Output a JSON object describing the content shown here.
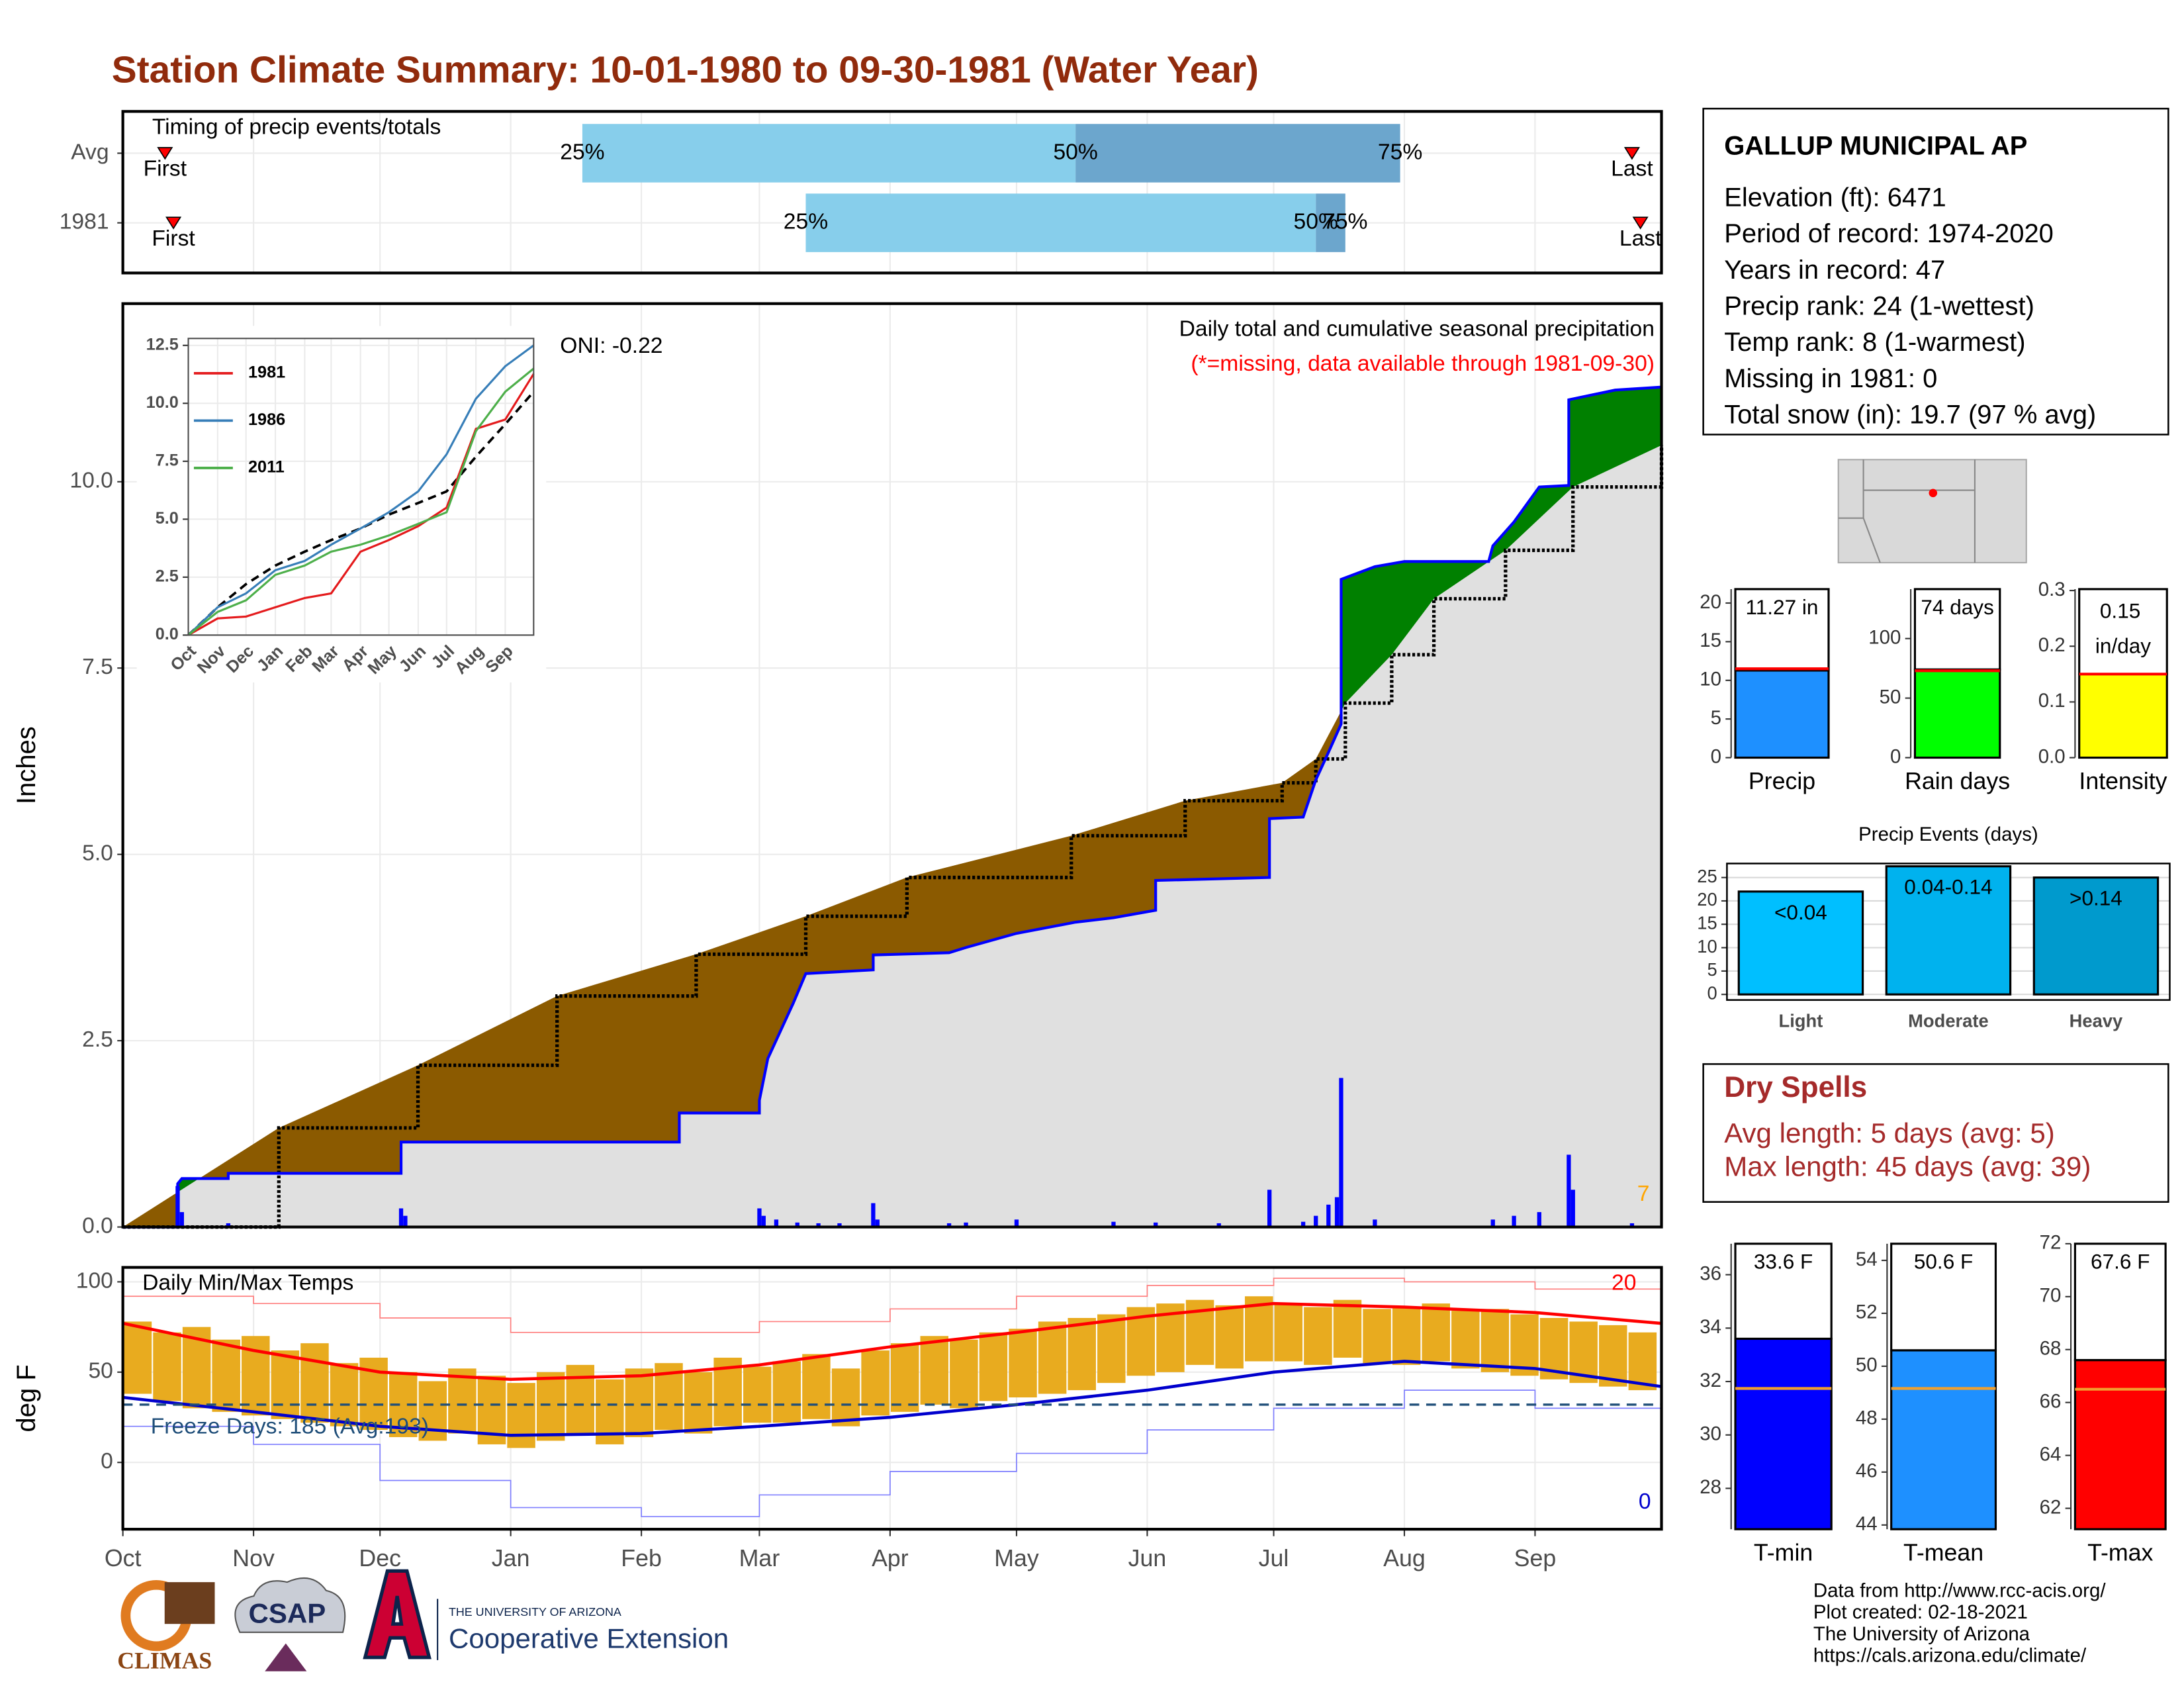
{
  "title": "Station Climate Summary: 10-01-1980 to 09-30-1981 (Water Year)",
  "station": {
    "name": "GALLUP MUNICIPAL AP",
    "lines": [
      "Elevation (ft): 6471",
      "Period of record: 1974-2020",
      "Years in record: 47",
      "Precip rank: 24 (1-wettest)",
      "Temp rank: 8 (1-warmest)",
      "Missing in 1981: 0",
      "Total snow (in): 19.7 (97 % avg)"
    ]
  },
  "dry_spells": {
    "title": "Dry Spells",
    "lines": [
      "Avg length: 5 days (avg: 5)",
      "Max length: 45 days (avg: 39)"
    ]
  },
  "footer": [
    "Data from http://www.rcc-acis.org/",
    "Plot created: 02-18-2021",
    "The University of Arizona",
    "https://cals.arizona.edu/climate/"
  ],
  "logos": {
    "climas": "CLIMAS",
    "csap": "CSAP",
    "university": "THE UNIVERSITY OF ARIZONA",
    "extension": "Cooperative Extension"
  },
  "chart_data": [
    {
      "type": "timing",
      "title": "Timing of precip events/totals",
      "categories": [
        "Avg",
        "1981"
      ],
      "xlim": [
        0,
        365
      ],
      "series": [
        {
          "name": "First",
          "values": [
            10,
            12
          ]
        },
        {
          "name": "25%",
          "values": [
            109,
            162
          ]
        },
        {
          "name": "50%",
          "values": [
            226,
            283
          ]
        },
        {
          "name": "75%",
          "values": [
            303,
            290
          ]
        },
        {
          "name": "Last",
          "values": [
            358,
            360
          ]
        }
      ],
      "colors": [
        "#87ceeb",
        "#6ca6cd"
      ],
      "marker_color": "#ff0000"
    },
    {
      "type": "precip",
      "title": "Daily total and cumulative seasonal precipitation",
      "subtitle": "(*=missing, data available through 1981-09-30)",
      "subtitle_color": "#ff0000",
      "annotations": [
        {
          "text": "ONI: -0.22",
          "color": "#000000"
        },
        {
          "text": "7",
          "color": "#ffa500"
        }
      ],
      "y_label": "Inches",
      "xlim": [
        0,
        365
      ],
      "ylim": [
        0,
        12.39
      ],
      "yticks": [
        {
          "value": 0,
          "label": "0.0"
        },
        2.5,
        {
          "value": 5,
          "label": "5.0"
        },
        7.5,
        {
          "value": 10,
          "label": "10.0"
        }
      ],
      "grid": true,
      "cumulative": {
        "color": "#0000ff",
        "x": [
          0,
          13,
          13,
          14,
          25,
          25,
          66,
          66,
          132,
          132,
          151,
          151,
          153,
          156,
          159,
          162,
          178,
          178,
          196,
          200,
          212,
          226,
          235,
          245,
          245,
          272,
          272,
          280,
          283,
          286,
          289,
          289,
          297,
          304,
          324,
          325,
          330,
          336,
          343,
          343,
          354,
          365
        ],
        "values": [
          0,
          0,
          0.58,
          0.65,
          0.65,
          0.72,
          0.72,
          1.14,
          1.14,
          1.53,
          1.53,
          1.7,
          2.26,
          2.63,
          3.0,
          3.4,
          3.45,
          3.65,
          3.68,
          3.75,
          3.94,
          4.09,
          4.15,
          4.25,
          4.65,
          4.69,
          5.48,
          5.5,
          6.0,
          6.37,
          6.75,
          8.69,
          8.86,
          8.93,
          8.93,
          9.14,
          9.46,
          9.93,
          9.95,
          11.1,
          11.23,
          11.27
        ]
      },
      "average": {
        "color": "#000000",
        "x": [
          0,
          37,
          70,
          103,
          136,
          162,
          186,
          225,
          252,
          275,
          283,
          290,
          301,
          311,
          328,
          344,
          365
        ],
        "values": [
          0,
          1.33,
          2.17,
          3.1,
          3.66,
          4.17,
          4.69,
          5.25,
          5.72,
          5.96,
          6.28,
          7.03,
          7.68,
          8.43,
          9.08,
          9.93,
          10.49
        ]
      },
      "daily": {
        "color": "#0000ff",
        "x": [
          13,
          14,
          25,
          66,
          67,
          151,
          152,
          155,
          160,
          165,
          170,
          178,
          179,
          196,
          200,
          212,
          235,
          245,
          260,
          272,
          280,
          283,
          286,
          288,
          289,
          297,
          325,
          330,
          336,
          343,
          344,
          358
        ],
        "values": [
          0.55,
          0.2,
          0.05,
          0.25,
          0.15,
          0.25,
          0.15,
          0.1,
          0.06,
          0.05,
          0.05,
          0.32,
          0.1,
          0.05,
          0.06,
          0.1,
          0.07,
          0.06,
          0.05,
          0.5,
          0.07,
          0.15,
          0.3,
          0.4,
          2.0,
          0.1,
          0.1,
          0.15,
          0.2,
          0.97,
          0.5,
          0.05
        ]
      },
      "above_color": "#008000",
      "below_color": "#8b5a00",
      "base_color": "#e0e0e0"
    },
    {
      "type": "inset",
      "xlim": [
        0,
        365
      ],
      "ylim": [
        0,
        12.8
      ],
      "xticks": [
        {
          "value": 0,
          "label": "Oct"
        },
        {
          "value": 31,
          "label": "Nov"
        },
        {
          "value": 61,
          "label": "Dec"
        },
        {
          "value": 92,
          "label": "Jan"
        },
        {
          "value": 123,
          "label": "Feb"
        },
        {
          "value": 151,
          "label": "Mar"
        },
        {
          "value": 182,
          "label": "Apr"
        },
        {
          "value": 212,
          "label": "May"
        },
        {
          "value": 243,
          "label": "Jun"
        },
        {
          "value": 273,
          "label": "Jul"
        },
        {
          "value": 304,
          "label": "Aug"
        },
        {
          "value": 335,
          "label": "Sep"
        }
      ],
      "yticks": [
        {
          "value": 0,
          "label": "0.0"
        },
        2.5,
        {
          "value": 5,
          "label": "5.0"
        },
        7.5,
        {
          "value": 10,
          "label": "10.0"
        },
        12.5
      ],
      "x": [
        0,
        31,
        61,
        92,
        123,
        151,
        182,
        212,
        243,
        273,
        304,
        335,
        365
      ],
      "series": [
        {
          "name": "1981",
          "color": "#e41a1c",
          "values": [
            0,
            0.72,
            0.8,
            1.2,
            1.6,
            1.8,
            3.6,
            4.1,
            4.7,
            5.5,
            8.9,
            9.3,
            11.27
          ]
        },
        {
          "name": "1986",
          "color": "#377eb8",
          "values": [
            0,
            1.2,
            1.8,
            2.8,
            3.2,
            3.9,
            4.6,
            5.3,
            6.2,
            7.8,
            10.2,
            11.6,
            12.5
          ]
        },
        {
          "name": "2011",
          "color": "#4daf4a",
          "values": [
            0,
            1.0,
            1.5,
            2.6,
            3.0,
            3.6,
            3.9,
            4.3,
            4.8,
            5.3,
            8.8,
            10.5,
            11.5
          ]
        }
      ],
      "reference": {
        "color": "#000000",
        "values": [
          0,
          1.2,
          2.2,
          3.0,
          3.6,
          4.1,
          4.6,
          5.2,
          5.7,
          6.2,
          7.7,
          9.1,
          10.5
        ]
      }
    },
    {
      "type": "temps",
      "title": "Daily Min/Max Temps",
      "y_label": "deg F",
      "xlim": [
        0,
        365
      ],
      "ylim": [
        -37,
        108
      ],
      "yticks": [
        0,
        50,
        100
      ],
      "grid": true,
      "xticks": [
        {
          "value": 0,
          "label": "Oct"
        },
        {
          "value": 31,
          "label": "Nov"
        },
        {
          "value": 61,
          "label": "Dec"
        },
        {
          "value": 92,
          "label": "Jan"
        },
        {
          "value": 123,
          "label": "Feb"
        },
        {
          "value": 151,
          "label": "Mar"
        },
        {
          "value": 182,
          "label": "Apr"
        },
        {
          "value": 212,
          "label": "May"
        },
        {
          "value": 243,
          "label": "Jun"
        },
        {
          "value": 273,
          "label": "Jul"
        },
        {
          "value": 304,
          "label": "Aug"
        },
        {
          "value": 335,
          "label": "Sep"
        }
      ],
      "annotations": [
        {
          "text": "Freeze Days: 185 (Avg:193)",
          "color": "#1f4e79"
        },
        {
          "text": "20",
          "color": "#ff0000"
        },
        {
          "text": "0",
          "color": "#0000cd"
        }
      ],
      "freeze_line": 32,
      "freeze_color": "#1f4e79",
      "bar_color": "#e8ab1f",
      "x": [
        0,
        7,
        14,
        21,
        28,
        35,
        42,
        49,
        56,
        63,
        70,
        77,
        84,
        91,
        98,
        105,
        112,
        119,
        126,
        133,
        140,
        147,
        154,
        161,
        168,
        175,
        182,
        189,
        196,
        203,
        210,
        217,
        224,
        231,
        238,
        245,
        252,
        259,
        266,
        273,
        280,
        287,
        294,
        301,
        308,
        315,
        322,
        329,
        336,
        343,
        350,
        357
      ],
      "max": [
        78,
        72,
        75,
        68,
        70,
        62,
        66,
        55,
        58,
        50,
        45,
        52,
        48,
        44,
        50,
        54,
        46,
        52,
        55,
        50,
        58,
        53,
        56,
        60,
        52,
        62,
        66,
        70,
        68,
        72,
        74,
        78,
        80,
        82,
        86,
        88,
        90,
        87,
        92,
        88,
        86,
        90,
        85,
        86,
        88,
        84,
        85,
        82,
        80,
        78,
        76,
        72
      ],
      "min": [
        38,
        34,
        30,
        28,
        26,
        24,
        22,
        20,
        18,
        14,
        12,
        16,
        10,
        8,
        12,
        15,
        10,
        14,
        18,
        16,
        20,
        22,
        22,
        24,
        20,
        26,
        28,
        32,
        30,
        34,
        36,
        38,
        40,
        44,
        48,
        50,
        54,
        52,
        56,
        56,
        54,
        58,
        55,
        54,
        56,
        52,
        50,
        48,
        46,
        44,
        42,
        40
      ],
      "normals": {
        "x": [
          0,
          31,
          61,
          92,
          123,
          151,
          182,
          212,
          243,
          273,
          304,
          335,
          365
        ],
        "max": [
          77,
          62,
          50,
          46,
          48,
          54,
          64,
          72,
          81,
          88,
          86,
          83,
          77
        ],
        "min": [
          36,
          28,
          20,
          15,
          16,
          20,
          25,
          32,
          40,
          50,
          56,
          52,
          42
        ],
        "max_color": "#ff0000",
        "min_color": "#0000cd"
      },
      "records": {
        "x": [
          0,
          31,
          61,
          92,
          123,
          151,
          182,
          212,
          243,
          273,
          304,
          335,
          365
        ],
        "max": [
          92,
          88,
          80,
          72,
          72,
          78,
          85,
          92,
          98,
          102,
          100,
          96,
          90
        ],
        "min": [
          20,
          10,
          -10,
          -25,
          -30,
          -18,
          -5,
          5,
          18,
          30,
          40,
          30,
          20
        ],
        "max_color": "#ff7f7f",
        "min_color": "#7f7fff"
      }
    },
    {
      "type": "summary",
      "categories": [
        "Precip"
      ],
      "values": [
        11.27
      ],
      "value_labels": [
        "11.27 in"
      ],
      "reference": [
        11.5
      ],
      "color": "#1e90ff",
      "reference_color": "#ff0000",
      "ylim": [
        0,
        21.8
      ],
      "yticks": [
        0,
        5,
        10,
        15,
        20
      ]
    },
    {
      "type": "summary",
      "categories": [
        "Rain days"
      ],
      "values": [
        74
      ],
      "value_labels": [
        "74 days"
      ],
      "reference": [
        73
      ],
      "color": "#00ff00",
      "reference_color": "#ff0000",
      "ylim": [
        0,
        141.5
      ],
      "yticks": [
        0,
        50,
        100
      ]
    },
    {
      "type": "summary",
      "categories": [
        "Intensity"
      ],
      "values": [
        0.15
      ],
      "value_labels": [
        "0.15 in/day"
      ],
      "reference": [
        0.15
      ],
      "color": "#ffff00",
      "reference_color": "#ff0000",
      "ylim": [
        0,
        0.3025
      ],
      "yticks": [
        {
          "value": 0,
          "label": "0.0"
        },
        0.1,
        0.2,
        0.3
      ]
    },
    {
      "type": "events",
      "title": "Precip Events (days)",
      "categories": [
        "Light",
        "Moderate",
        "Heavy"
      ],
      "values": [
        22,
        27.4,
        25
      ],
      "bin_labels": [
        "<0.04",
        "0.04-0.14",
        ">0.14"
      ],
      "colors": [
        "#00bfff",
        "#00b2ee",
        "#009acd"
      ],
      "ylim": [
        0,
        28
      ],
      "yticks": [
        0,
        5,
        10,
        15,
        20,
        25
      ],
      "grid": true
    },
    {
      "type": "summary",
      "categories": [
        "T-min"
      ],
      "values": [
        33.6
      ],
      "value_labels": [
        "33.6 F"
      ],
      "reference": [
        31.74
      ],
      "color": "#0000ff",
      "reference_color": "#f0a030",
      "ylim": [
        26.47,
        37.16
      ],
      "yticks": [
        28,
        30,
        32,
        34,
        36
      ]
    },
    {
      "type": "summary",
      "categories": [
        "T-mean"
      ],
      "values": [
        50.6
      ],
      "value_labels": [
        "50.6 F"
      ],
      "reference": [
        49.16
      ],
      "color": "#1e90ff",
      "reference_color": "#f0a030",
      "ylim": [
        43.84,
        54.63
      ],
      "yticks": [
        44,
        46,
        48,
        50,
        52,
        54
      ]
    },
    {
      "type": "summary",
      "categories": [
        "T-max"
      ],
      "values": [
        67.6
      ],
      "value_labels": [
        "67.6 F"
      ],
      "reference": [
        66.5
      ],
      "color": "#ff0000",
      "reference_color": "#f0a030",
      "ylim": [
        61.21,
        72
      ],
      "yticks": [
        62,
        64,
        66,
        68,
        70,
        72
      ]
    }
  ]
}
